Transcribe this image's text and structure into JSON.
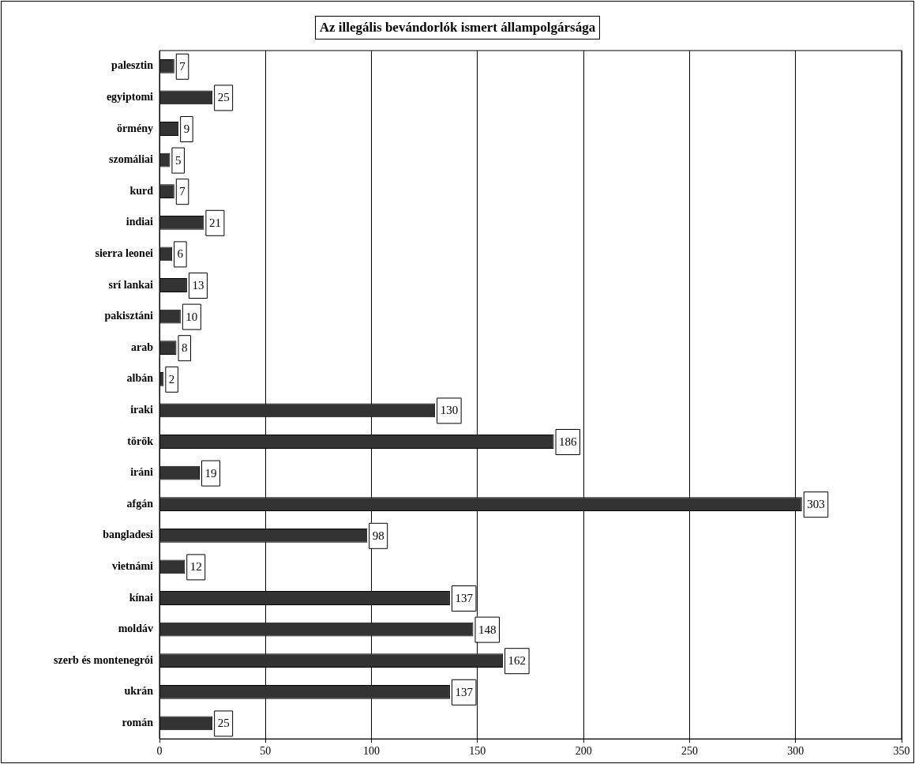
{
  "chart_data": {
    "type": "bar",
    "orientation": "horizontal",
    "title": "Az illegális bevándorlók ismert állampolgársága",
    "categories": [
      "palesztin",
      "egyiptomi",
      "örmény",
      "szomáliai",
      "kurd",
      "indiai",
      "sierra leonei",
      "srí lankai",
      "pakisztáni",
      "arab",
      "albán",
      "iraki",
      "török",
      "iráni",
      "afgán",
      "bangladesi",
      "vietnámi",
      "kínai",
      "moldáv",
      "szerb és montenegrói",
      "ukrán",
      "román"
    ],
    "values": [
      7,
      25,
      9,
      5,
      7,
      21,
      6,
      13,
      10,
      8,
      2,
      130,
      186,
      19,
      303,
      98,
      12,
      137,
      148,
      162,
      137,
      25
    ],
    "color": "#333333",
    "xlim": [
      0,
      350
    ],
    "xticks": [
      0,
      50,
      100,
      150,
      200,
      250,
      300,
      350
    ],
    "grid": "x",
    "legend": false,
    "data_labels": true
  }
}
